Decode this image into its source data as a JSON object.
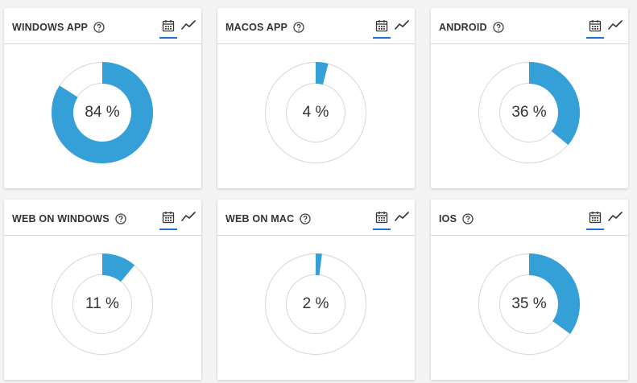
{
  "colors": {
    "accent": "#359fd8",
    "track": "#d6d6d6",
    "tab_active": "#1e6fd9"
  },
  "icons": {
    "help": "question-circle-icon",
    "calendar": "calendar-icon",
    "trend": "trend-line-icon"
  },
  "cards": [
    {
      "title": "WINDOWS APP",
      "value": 84,
      "label": "84 %"
    },
    {
      "title": "MACOS APP",
      "value": 4,
      "label": "4 %"
    },
    {
      "title": "ANDROID",
      "value": 36,
      "label": "36 %"
    },
    {
      "title": "WEB ON WINDOWS",
      "value": 11,
      "label": "11 %"
    },
    {
      "title": "WEB ON MAC",
      "value": 2,
      "label": "2 %"
    },
    {
      "title": "IOS",
      "value": 35,
      "label": "35 %"
    }
  ]
}
